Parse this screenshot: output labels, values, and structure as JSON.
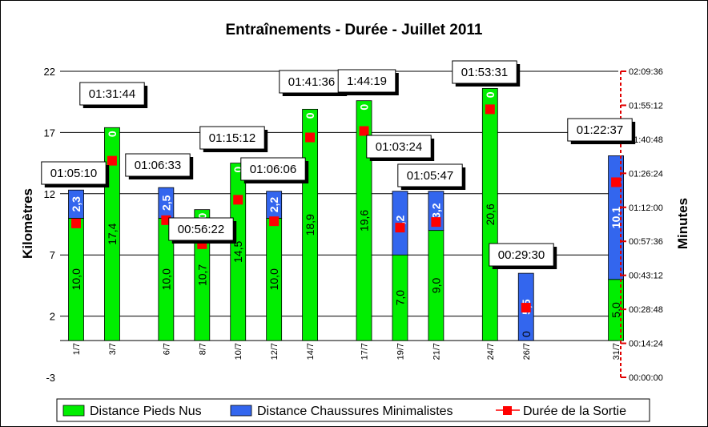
{
  "chart_data": {
    "type": "bar",
    "title": "Entraînements - Durée - Juillet 2011",
    "ylabel": "Kilomètres",
    "y2label": "Minutes",
    "ylim": [
      -3,
      22
    ],
    "yticks": [
      -3,
      2,
      7,
      12,
      17,
      22
    ],
    "y2ticks": [
      "00:00:00",
      "00:14:24",
      "00:28:48",
      "00:43:12",
      "00:57:36",
      "01:12:00",
      "01:26:24",
      "01:40:48",
      "01:55:12",
      "02:09:36"
    ],
    "y2lim_minutes": [
      0,
      129.6
    ],
    "grid": true,
    "legend_position": "bottom",
    "categories": [
      "1/7",
      "3/7",
      "6/7",
      "8/7",
      "10/7",
      "12/7",
      "14/7",
      "17/7",
      "19/7",
      "21/7",
      "24/7",
      "26/7",
      "31/7"
    ],
    "day_of_month": [
      1,
      3,
      6,
      8,
      10,
      12,
      14,
      17,
      19,
      21,
      24,
      26,
      31
    ],
    "series": [
      {
        "name": "Distance Pieds Nus",
        "color": "#00ee00",
        "values": [
          10.0,
          17.4,
          10.0,
          10.7,
          14.5,
          10.0,
          18.9,
          19.6,
          7.0,
          9.0,
          20.6,
          0,
          5.0
        ],
        "labels": [
          "10,0",
          "17,4",
          "10,0",
          "10,7",
          "14,5",
          "10,0",
          "18,9",
          "19,6",
          "7,0",
          "9,0",
          "20,6",
          "0",
          "5,0"
        ]
      },
      {
        "name": "Distance Chaussures Minimalistes",
        "color": "#3366ee",
        "values": [
          2.3,
          0,
          2.5,
          0,
          0,
          2.2,
          0,
          0,
          5.2,
          3.2,
          0,
          5.5,
          10.1
        ],
        "labels": [
          "2,3",
          "0",
          "2,5",
          "0",
          "0",
          "2,2",
          "0",
          "0",
          "5,2",
          "3,2",
          "0",
          "5,5",
          "10,1"
        ]
      },
      {
        "name": "Durée de la Sortie",
        "color": "#ff0000",
        "axis": "secondary",
        "values_minutes": [
          65.17,
          91.73,
          66.55,
          56.37,
          75.2,
          66.1,
          101.6,
          104.32,
          63.4,
          65.78,
          113.52,
          29.5,
          82.62
        ],
        "labels": [
          "01:05:10",
          "01:31:44",
          "01:06:33",
          "00:56:22",
          "01:15:12",
          "01:06:06",
          "01:41:36",
          "1:44:19",
          "01:03:24",
          "01:05:47",
          "01:53:31",
          "00:29:30",
          "01:22:37"
        ]
      }
    ]
  }
}
